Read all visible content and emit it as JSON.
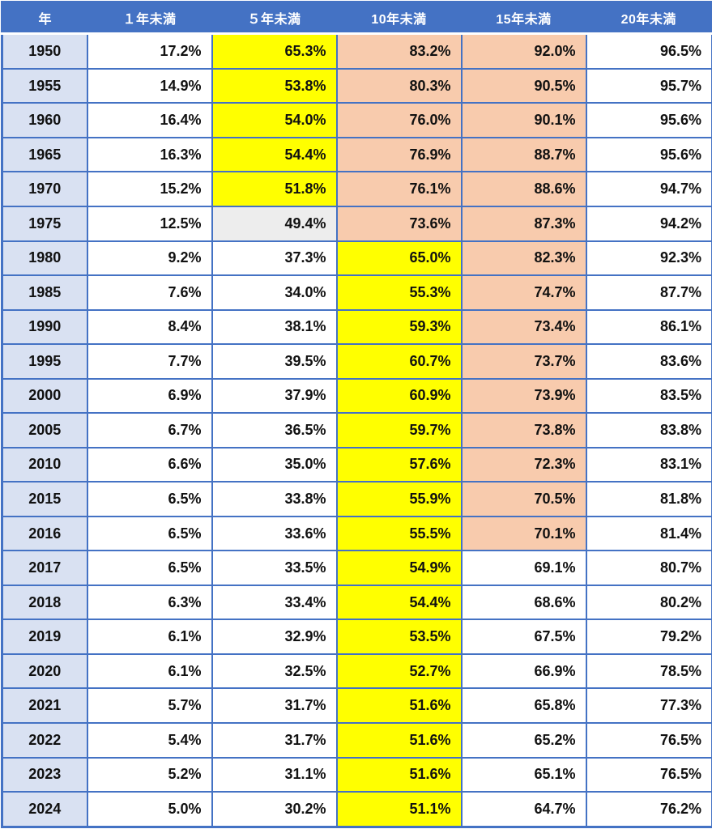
{
  "chart_data": {
    "type": "table",
    "title": "",
    "unit": "%",
    "columns": [
      "年",
      "１年未満",
      "５年未満",
      "10年未満",
      "15年未満",
      "20年未満"
    ],
    "rows": [
      {
        "year": "1950",
        "values": [
          17.2,
          65.3,
          83.2,
          92.0,
          96.5
        ],
        "highlights": [
          "none",
          "yellow",
          "peach",
          "peach",
          "none"
        ]
      },
      {
        "year": "1955",
        "values": [
          14.9,
          53.8,
          80.3,
          90.5,
          95.7
        ],
        "highlights": [
          "none",
          "yellow",
          "peach",
          "peach",
          "none"
        ]
      },
      {
        "year": "1960",
        "values": [
          16.4,
          54.0,
          76.0,
          90.1,
          95.6
        ],
        "highlights": [
          "none",
          "yellow",
          "peach",
          "peach",
          "none"
        ]
      },
      {
        "year": "1965",
        "values": [
          16.3,
          54.4,
          76.9,
          88.7,
          95.6
        ],
        "highlights": [
          "none",
          "yellow",
          "peach",
          "peach",
          "none"
        ]
      },
      {
        "year": "1970",
        "values": [
          15.2,
          51.8,
          76.1,
          88.6,
          94.7
        ],
        "highlights": [
          "none",
          "yellow",
          "peach",
          "peach",
          "none"
        ]
      },
      {
        "year": "1975",
        "values": [
          12.5,
          49.4,
          73.6,
          87.3,
          94.2
        ],
        "highlights": [
          "none",
          "gray",
          "peach",
          "peach",
          "none"
        ]
      },
      {
        "year": "1980",
        "values": [
          9.2,
          37.3,
          65.0,
          82.3,
          92.3
        ],
        "highlights": [
          "none",
          "none",
          "yellow",
          "peach",
          "none"
        ]
      },
      {
        "year": "1985",
        "values": [
          7.6,
          34.0,
          55.3,
          74.7,
          87.7
        ],
        "highlights": [
          "none",
          "none",
          "yellow",
          "peach",
          "none"
        ]
      },
      {
        "year": "1990",
        "values": [
          8.4,
          38.1,
          59.3,
          73.4,
          86.1
        ],
        "highlights": [
          "none",
          "none",
          "yellow",
          "peach",
          "none"
        ]
      },
      {
        "year": "1995",
        "values": [
          7.7,
          39.5,
          60.7,
          73.7,
          83.6
        ],
        "highlights": [
          "none",
          "none",
          "yellow",
          "peach",
          "none"
        ]
      },
      {
        "year": "2000",
        "values": [
          6.9,
          37.9,
          60.9,
          73.9,
          83.5
        ],
        "highlights": [
          "none",
          "none",
          "yellow",
          "peach",
          "none"
        ]
      },
      {
        "year": "2005",
        "values": [
          6.7,
          36.5,
          59.7,
          73.8,
          83.8
        ],
        "highlights": [
          "none",
          "none",
          "yellow",
          "peach",
          "none"
        ]
      },
      {
        "year": "2010",
        "values": [
          6.6,
          35.0,
          57.6,
          72.3,
          83.1
        ],
        "highlights": [
          "none",
          "none",
          "yellow",
          "peach",
          "none"
        ]
      },
      {
        "year": "2015",
        "values": [
          6.5,
          33.8,
          55.9,
          70.5,
          81.8
        ],
        "highlights": [
          "none",
          "none",
          "yellow",
          "peach",
          "none"
        ]
      },
      {
        "year": "2016",
        "values": [
          6.5,
          33.6,
          55.5,
          70.1,
          81.4
        ],
        "highlights": [
          "none",
          "none",
          "yellow",
          "peach",
          "none"
        ]
      },
      {
        "year": "2017",
        "values": [
          6.5,
          33.5,
          54.9,
          69.1,
          80.7
        ],
        "highlights": [
          "none",
          "none",
          "yellow",
          "none",
          "none"
        ]
      },
      {
        "year": "2018",
        "values": [
          6.3,
          33.4,
          54.4,
          68.6,
          80.2
        ],
        "highlights": [
          "none",
          "none",
          "yellow",
          "none",
          "none"
        ]
      },
      {
        "year": "2019",
        "values": [
          6.1,
          32.9,
          53.5,
          67.5,
          79.2
        ],
        "highlights": [
          "none",
          "none",
          "yellow",
          "none",
          "none"
        ]
      },
      {
        "year": "2020",
        "values": [
          6.1,
          32.5,
          52.7,
          66.9,
          78.5
        ],
        "highlights": [
          "none",
          "none",
          "yellow",
          "none",
          "none"
        ]
      },
      {
        "year": "2021",
        "values": [
          5.7,
          31.7,
          51.6,
          65.8,
          77.3
        ],
        "highlights": [
          "none",
          "none",
          "yellow",
          "none",
          "none"
        ]
      },
      {
        "year": "2022",
        "values": [
          5.4,
          31.7,
          51.6,
          65.2,
          76.5
        ],
        "highlights": [
          "none",
          "none",
          "yellow",
          "none",
          "none"
        ]
      },
      {
        "year": "2023",
        "values": [
          5.2,
          31.1,
          51.6,
          65.1,
          76.5
        ],
        "highlights": [
          "none",
          "none",
          "yellow",
          "none",
          "none"
        ]
      },
      {
        "year": "2024",
        "values": [
          5.0,
          30.2,
          51.1,
          64.7,
          76.2
        ],
        "highlights": [
          "none",
          "none",
          "yellow",
          "none",
          "none"
        ]
      }
    ]
  },
  "colors": {
    "header_bg": "#4472C4",
    "header_text": "#FFFFFF",
    "year_col_bg": "#D9E1F2",
    "border": "#4472C4",
    "text": "#111111",
    "none": "#FFFFFF",
    "yellow": "#FFFF00",
    "peach": "#F8CBAD",
    "gray": "#EDEDED"
  }
}
